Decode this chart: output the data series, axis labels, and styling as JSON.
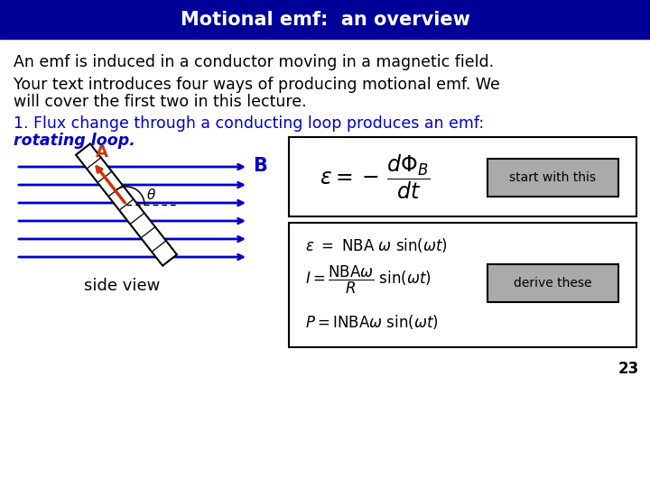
{
  "title": "Motional emf:  an overview",
  "title_bg": "#000099",
  "title_color": "#ffffff",
  "body_bg": "#ffffff",
  "text_color": "#000000",
  "blue_color": "#0000cc",
  "red_color": "#cc3300",
  "line1": "An emf is induced in a conductor moving in a magnetic field.",
  "line2a": "Your text introduces four ways of producing motional emf. We",
  "line2b": "will cover the first two in this lecture.",
  "line3a": "1. Flux change through a conducting loop produces an emf:",
  "line3b": "rotating loop",
  "side_view_label": "side view",
  "box1_label": "start with this",
  "box2_label": "derive these",
  "page_num": "23",
  "title_fontsize": 15,
  "body_fontsize": 12.5
}
